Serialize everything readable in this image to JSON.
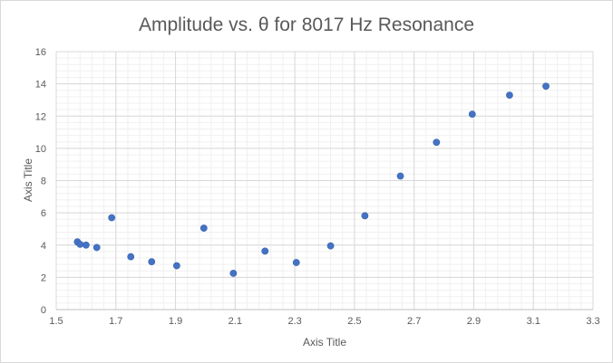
{
  "chart_data": {
    "type": "scatter",
    "title": "Amplitude vs. θ for 8017 Hz Resonance",
    "xlabel": "Axis Title",
    "ylabel": "Axis Title",
    "xlim": [
      1.5,
      3.3
    ],
    "ylim": [
      0,
      16
    ],
    "x_ticks": [
      1.5,
      1.7,
      1.9,
      2.1,
      2.3,
      2.5,
      2.7,
      2.9,
      3.1,
      3.3
    ],
    "x_minor_step": 0.04,
    "y_ticks": [
      0,
      2,
      4,
      6,
      8,
      10,
      12,
      14,
      16
    ],
    "y_minor_step": 0.4,
    "grid": true,
    "legend": "none",
    "marker_color": "#4472c4",
    "series": [
      {
        "points": [
          {
            "x": 1.571,
            "y": 4.2
          },
          {
            "x": 1.58,
            "y": 4.05
          },
          {
            "x": 1.6,
            "y": 4.0
          },
          {
            "x": 1.636,
            "y": 3.85
          },
          {
            "x": 1.686,
            "y": 5.7
          },
          {
            "x": 1.75,
            "y": 3.28
          },
          {
            "x": 1.82,
            "y": 2.97
          },
          {
            "x": 1.904,
            "y": 2.72
          },
          {
            "x": 1.995,
            "y": 5.05
          },
          {
            "x": 2.094,
            "y": 2.25
          },
          {
            "x": 2.2,
            "y": 3.63
          },
          {
            "x": 2.305,
            "y": 2.92
          },
          {
            "x": 2.42,
            "y": 3.95
          },
          {
            "x": 2.535,
            "y": 5.82
          },
          {
            "x": 2.654,
            "y": 8.28
          },
          {
            "x": 2.775,
            "y": 10.37
          },
          {
            "x": 2.895,
            "y": 12.12
          },
          {
            "x": 3.02,
            "y": 13.3
          },
          {
            "x": 3.142,
            "y": 13.85
          }
        ]
      }
    ]
  }
}
